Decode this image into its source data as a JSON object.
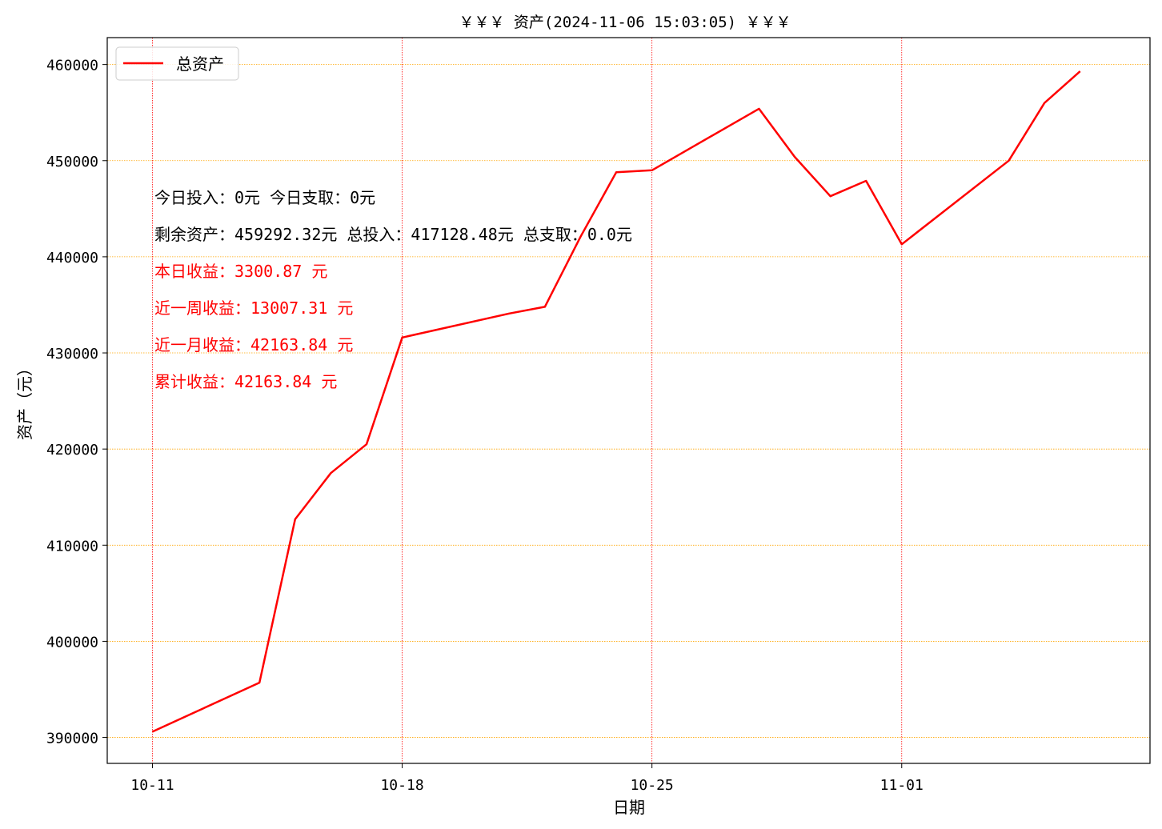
{
  "chart_data": {
    "type": "line",
    "title": "￥￥￥ 资产(2024-11-06 15:03:05) ￥￥￥",
    "xlabel": "日期",
    "ylabel": "资产（元）",
    "x_tick_labels": [
      "10-11",
      "10-18",
      "10-25",
      "11-01"
    ],
    "x_tick_dates": [
      "2024-10-11",
      "2024-10-18",
      "2024-10-25",
      "2024-11-01"
    ],
    "y_ticks": [
      390000,
      400000,
      410000,
      420000,
      430000,
      440000,
      450000,
      460000
    ],
    "y_tick_labels": [
      "390000",
      "400000",
      "410000",
      "420000",
      "430000",
      "440000",
      "450000",
      "460000"
    ],
    "ylim": [
      387300,
      462800
    ],
    "xlim": [
      "2024-10-09T17:36",
      "2024-11-07T23:00"
    ],
    "grid": true,
    "legend_position": "upper-left",
    "series": [
      {
        "name": "总资产",
        "color": "#ff0000",
        "points": [
          {
            "x": "2024-10-11",
            "y": 390600
          },
          {
            "x": "2024-10-14",
            "y": 395700
          },
          {
            "x": "2024-10-15",
            "y": 412700
          },
          {
            "x": "2024-10-16",
            "y": 417500
          },
          {
            "x": "2024-10-17",
            "y": 420500
          },
          {
            "x": "2024-10-18",
            "y": 431600
          },
          {
            "x": "2024-10-21",
            "y": 434100
          },
          {
            "x": "2024-10-22",
            "y": 434800
          },
          {
            "x": "2024-10-23",
            "y": 442100
          },
          {
            "x": "2024-10-24",
            "y": 448800
          },
          {
            "x": "2024-10-25",
            "y": 449000
          },
          {
            "x": "2024-10-28",
            "y": 455400
          },
          {
            "x": "2024-10-29",
            "y": 450400
          },
          {
            "x": "2024-10-30",
            "y": 446300
          },
          {
            "x": "2024-10-31",
            "y": 447900
          },
          {
            "x": "2024-11-01",
            "y": 441300
          },
          {
            "x": "2024-11-04",
            "y": 450000
          },
          {
            "x": "2024-11-05",
            "y": 456000
          },
          {
            "x": "2024-11-06",
            "y": 459292.32
          }
        ]
      }
    ],
    "annotations": [
      {
        "text": "今日投入：0元 今日支取：0元",
        "color": "#000000"
      },
      {
        "text": "剩余资产：459292.32元 总投入：417128.48元  总支取：0.0元",
        "color": "#000000"
      },
      {
        "text": "本日收益：3300.87 元",
        "color": "#ff0000"
      },
      {
        "text": "近一周收益：13007.31 元",
        "color": "#ff0000"
      },
      {
        "text": "近一月收益：42163.84 元",
        "color": "#ff0000"
      },
      {
        "text": "累计收益：42163.84 元",
        "color": "#ff0000"
      }
    ],
    "colors": {
      "line": "#ff0000",
      "vertical_grid": "#ff0000",
      "horizontal_grid": "#ffa500"
    }
  }
}
